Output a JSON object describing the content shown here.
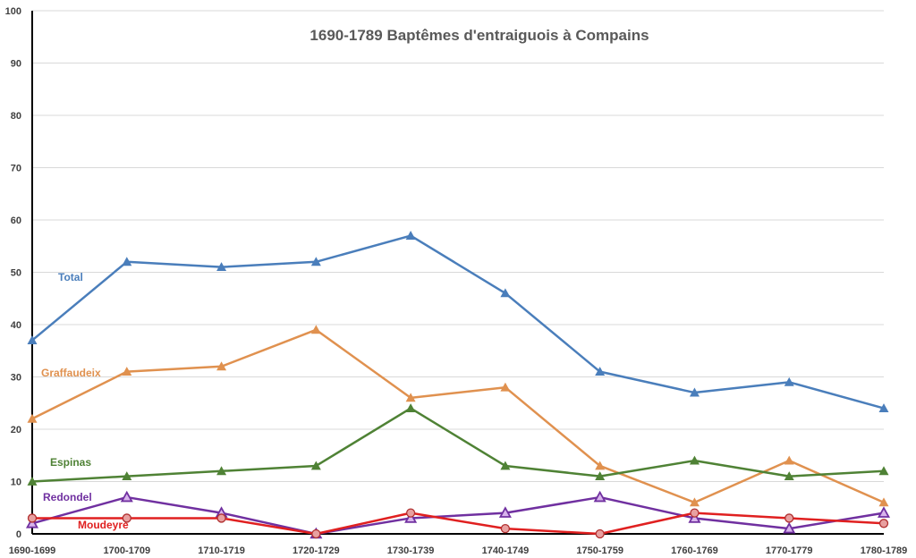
{
  "chart_data": {
    "type": "line",
    "title": "1690-1789 Baptêmes d'entraiguois à Compains",
    "xlabel": "",
    "ylabel": "",
    "ylim": [
      0,
      100
    ],
    "yticks": [
      0,
      10,
      20,
      30,
      40,
      50,
      60,
      70,
      80,
      90,
      100
    ],
    "grid": true,
    "legend": "inline labels",
    "categories": [
      "1690-1699",
      "1700-1709",
      "1710-1719",
      "1720-1729",
      "1730-1739",
      "1740-1749",
      "1750-1759",
      "1760-1769",
      "1770-1779",
      "1780-1789"
    ],
    "series": [
      {
        "name": "Total",
        "color": "#4a7ebb",
        "marker": "triangle",
        "values": [
          37,
          52,
          51,
          52,
          57,
          46,
          31,
          27,
          29,
          24
        ]
      },
      {
        "name": "Graffaudeix",
        "color": "#e0914f",
        "marker": "triangle",
        "values": [
          22,
          31,
          32,
          39,
          26,
          28,
          13,
          6,
          14,
          6
        ]
      },
      {
        "name": "Espinas",
        "color": "#4f8235",
        "marker": "triangle",
        "values": [
          10,
          11,
          12,
          13,
          24,
          13,
          11,
          14,
          11,
          12
        ]
      },
      {
        "name": "Redondel",
        "color": "#7030a0",
        "marker": "triangle-open",
        "values": [
          2,
          7,
          4,
          0,
          3,
          4,
          7,
          3,
          1,
          4
        ]
      },
      {
        "name": "Moudeyre",
        "color": "#e02020",
        "marker": "circle",
        "values": [
          3,
          3,
          3,
          0,
          4,
          1,
          0,
          4,
          3,
          2
        ]
      }
    ]
  }
}
